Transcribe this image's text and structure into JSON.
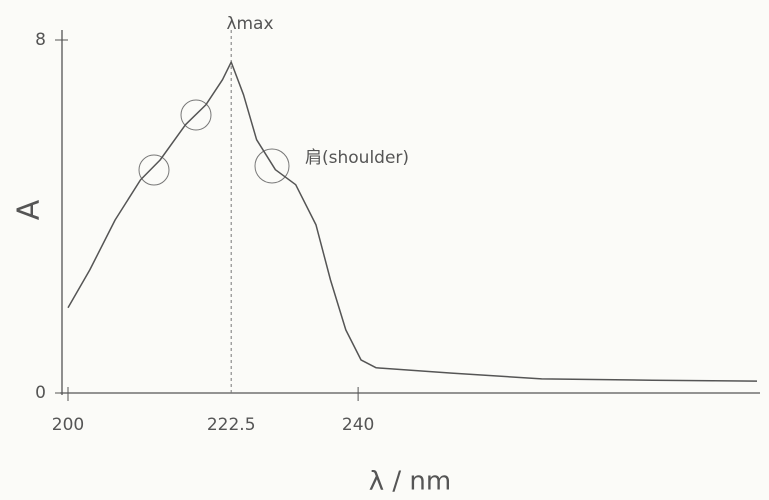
{
  "chart_data": {
    "type": "line",
    "x": [
      200,
      203,
      206.5,
      210,
      212.7,
      216.2,
      219,
      221.3,
      222.5,
      224.2,
      226,
      228.6,
      231.4,
      234.2,
      236.2,
      238.3,
      240.4,
      242.5,
      252.9,
      265.3,
      280.6,
      295
    ],
    "values": [
      1.93,
      2.79,
      3.92,
      4.83,
      5.28,
      6.08,
      6.53,
      7.1,
      7.5,
      6.76,
      5.74,
      5.06,
      4.72,
      3.81,
      2.56,
      1.43,
      0.75,
      0.57,
      0.45,
      0.32,
      0.29,
      0.27
    ],
    "color": "#555555",
    "xlim": [
      200,
      295
    ],
    "xticks": [
      200,
      222.5,
      240
    ],
    "ylim": [
      0,
      8
    ],
    "yticks": [
      0,
      8
    ],
    "xlabel": "λ / nm",
    "ylabel": "A",
    "annotations": [
      "λmax",
      "肩(shoulder)"
    ]
  }
}
